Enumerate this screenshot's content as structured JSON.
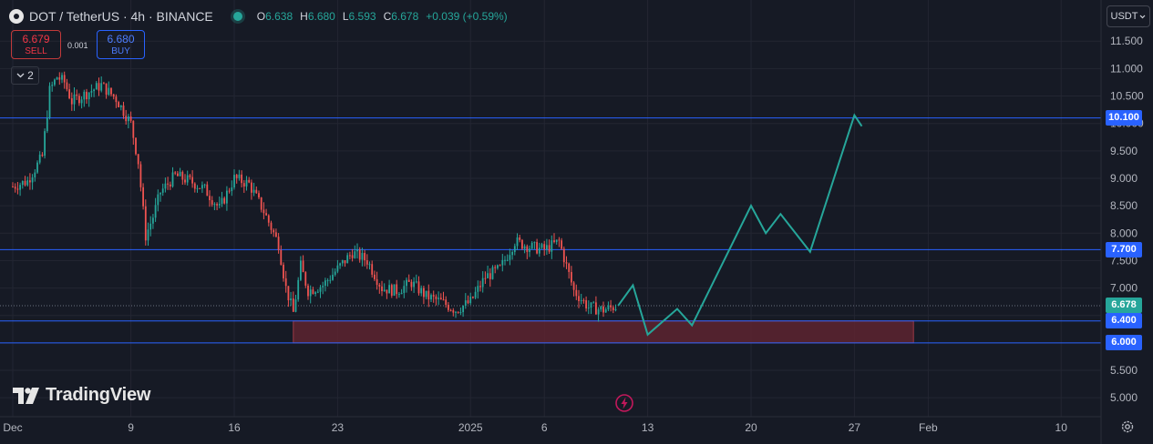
{
  "header": {
    "symbol_title": "DOT / TetherUS · 4h · BINANCE",
    "ohlc": [
      {
        "key": "O",
        "value": "6.638"
      },
      {
        "key": "H",
        "value": "6.680"
      },
      {
        "key": "L",
        "value": "6.593"
      },
      {
        "key": "C",
        "value": "6.678"
      }
    ],
    "change": "+0.039 (+0.59%)"
  },
  "trade": {
    "sell_price": "6.679",
    "sell_label": "SELL",
    "buy_price": "6.680",
    "buy_label": "BUY",
    "spread": "0.001"
  },
  "indicators_toggle": {
    "count": "2"
  },
  "currency_select": {
    "value": "USDT"
  },
  "brand": {
    "name": "TradingView"
  },
  "colors": {
    "background": "#161a25",
    "grid": "#232632",
    "up": "#26a69a",
    "down": "#ef5350",
    "level_line": "#2962ff",
    "projection": "#26a69a",
    "zone_fill": "#5d2530",
    "zone_border": "#9b3a45"
  },
  "chart_data": {
    "type": "candlestick",
    "symbol": "DOT/USDT",
    "timeframe": "4h",
    "ylim": [
      4.82,
      11.67
    ],
    "y_ticks": [
      "5.000",
      "5.500",
      "6.000",
      "6.500",
      "7.000",
      "7.500",
      "8.000",
      "8.500",
      "9.000",
      "9.500",
      "10.000",
      "10.500",
      "11.000",
      "11.500"
    ],
    "x_ticks": [
      {
        "label": "Dec",
        "date": "2024-12-01"
      },
      {
        "label": "9",
        "date": "2024-12-09"
      },
      {
        "label": "16",
        "date": "2024-12-16"
      },
      {
        "label": "23",
        "date": "2024-12-23"
      },
      {
        "label": "2025",
        "date": "2025-01-01"
      },
      {
        "label": "6",
        "date": "2025-01-06"
      },
      {
        "label": "13",
        "date": "2025-01-13"
      },
      {
        "label": "20",
        "date": "2025-01-20"
      },
      {
        "label": "27",
        "date": "2025-01-27"
      },
      {
        "label": "Feb",
        "date": "2025-02-01"
      },
      {
        "label": "10",
        "date": "2025-02-10"
      }
    ],
    "close_trace": [
      [
        "2024-12-01",
        8.85
      ],
      [
        "2024-12-02",
        8.95
      ],
      [
        "2024-12-03",
        9.4
      ],
      [
        "2024-12-03T12:00",
        10.6
      ],
      [
        "2024-12-04",
        10.85
      ],
      [
        "2024-12-04T12:00",
        10.75
      ],
      [
        "2024-12-05",
        10.4
      ],
      [
        "2024-12-06",
        10.55
      ],
      [
        "2024-12-07",
        10.7
      ],
      [
        "2024-12-08",
        10.45
      ],
      [
        "2024-12-09",
        10.0
      ],
      [
        "2024-12-09T12:00",
        9.3
      ],
      [
        "2024-12-10",
        7.95
      ],
      [
        "2024-12-10T12:00",
        8.3
      ],
      [
        "2024-12-11",
        8.75
      ],
      [
        "2024-12-12",
        9.05
      ],
      [
        "2024-12-13",
        8.95
      ],
      [
        "2024-12-14",
        8.8
      ],
      [
        "2024-12-15",
        8.45
      ],
      [
        "2024-12-16",
        9.0
      ],
      [
        "2024-12-17",
        8.9
      ],
      [
        "2024-12-18",
        8.4
      ],
      [
        "2024-12-19",
        7.8
      ],
      [
        "2024-12-19T12:00",
        7.0
      ],
      [
        "2024-12-20",
        6.55
      ],
      [
        "2024-12-20T12:00",
        7.4
      ],
      [
        "2024-12-21",
        6.95
      ],
      [
        "2024-12-22",
        7.05
      ],
      [
        "2024-12-23",
        7.35
      ],
      [
        "2024-12-24",
        7.65
      ],
      [
        "2024-12-25",
        7.5
      ],
      [
        "2024-12-26",
        7.0
      ],
      [
        "2024-12-27",
        6.95
      ],
      [
        "2024-12-28",
        7.1
      ],
      [
        "2024-12-29",
        6.85
      ],
      [
        "2024-12-30",
        6.75
      ],
      [
        "2024-12-31",
        6.6
      ],
      [
        "2025-01-01",
        6.75
      ],
      [
        "2025-01-02",
        7.2
      ],
      [
        "2025-01-03",
        7.35
      ],
      [
        "2025-01-04",
        7.85
      ],
      [
        "2025-01-05",
        7.75
      ],
      [
        "2025-01-06",
        7.7
      ],
      [
        "2025-01-07",
        7.85
      ],
      [
        "2025-01-08",
        6.95
      ],
      [
        "2025-01-09",
        6.65
      ],
      [
        "2025-01-10",
        6.6
      ],
      [
        "2025-01-11",
        6.68
      ]
    ],
    "levels": [
      {
        "value": 10.1,
        "label": "10.100"
      },
      {
        "value": 7.7,
        "label": "7.700"
      },
      {
        "value": 6.4,
        "label": "6.400"
      },
      {
        "value": 6.0,
        "label": "6.000"
      }
    ],
    "last_price": {
      "value": 6.678,
      "label": "6.678"
    },
    "demand_zone": {
      "from_date": "2024-12-20",
      "to_date": "2025-01-31",
      "low": 6.0,
      "high": 6.4
    },
    "projection_path": [
      [
        "2025-01-11",
        6.68
      ],
      [
        "2025-01-12",
        7.05
      ],
      [
        "2025-01-13",
        6.15
      ],
      [
        "2025-01-15",
        6.62
      ],
      [
        "2025-01-16",
        6.32
      ],
      [
        "2025-01-20",
        8.5
      ],
      [
        "2025-01-21",
        8.0
      ],
      [
        "2025-01-22",
        8.35
      ],
      [
        "2025-01-24",
        7.66
      ],
      [
        "2025-01-27",
        10.15
      ],
      [
        "2025-01-27T12:00",
        9.95
      ]
    ]
  }
}
